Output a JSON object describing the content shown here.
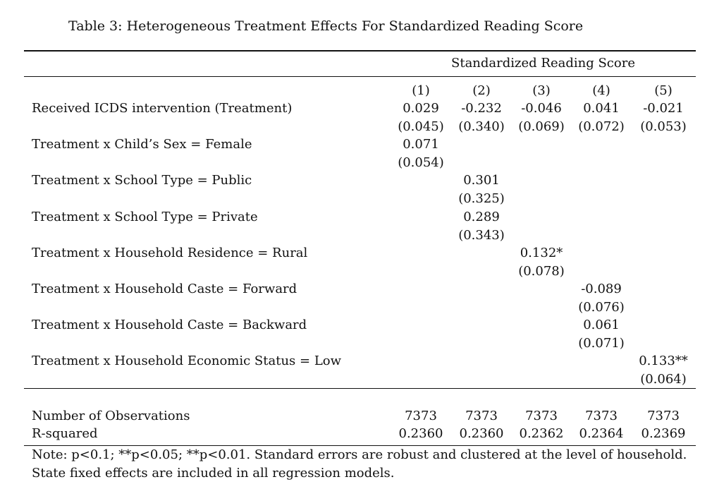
{
  "caption": "Table 3: Heterogeneous Treatment Effects For Standardized Reading Score",
  "header_group": "Standardized Reading Score",
  "columns": [
    "(1)",
    "(2)",
    "(3)",
    "(4)",
    "(5)"
  ],
  "rows": [
    {
      "label": "Received ICDS intervention (Treatment)",
      "coef": [
        "0.029",
        "-0.232",
        "-0.046",
        "0.041",
        "-0.021"
      ],
      "se": [
        "(0.045)",
        "(0.340)",
        "(0.069)",
        "(0.072)",
        "(0.053)"
      ]
    },
    {
      "label": "Treatment x Child’s Sex = Female",
      "coef": [
        "0.071",
        "",
        "",
        "",
        ""
      ],
      "se": [
        "(0.054)",
        "",
        "",
        "",
        ""
      ]
    },
    {
      "label": "Treatment x School Type = Public",
      "coef": [
        "",
        "0.301",
        "",
        "",
        ""
      ],
      "se": [
        "",
        "(0.325)",
        "",
        "",
        ""
      ]
    },
    {
      "label": "Treatment x School Type = Private",
      "coef": [
        "",
        "0.289",
        "",
        "",
        ""
      ],
      "se": [
        "",
        "(0.343)",
        "",
        "",
        ""
      ]
    },
    {
      "label": "Treatment x Household Residence = Rural",
      "coef": [
        "",
        "",
        "0.132*",
        "",
        ""
      ],
      "se": [
        "",
        "",
        "(0.078)",
        "",
        ""
      ]
    },
    {
      "label": "Treatment x Household Caste = Forward",
      "coef": [
        "",
        "",
        "",
        "-0.089",
        ""
      ],
      "se": [
        "",
        "",
        "",
        "(0.076)",
        ""
      ]
    },
    {
      "label": "Treatment x Household Caste = Backward",
      "coef": [
        "",
        "",
        "",
        "0.061",
        ""
      ],
      "se": [
        "",
        "",
        "",
        "(0.071)",
        ""
      ]
    },
    {
      "label": "Treatment x Household Economic Status = Low",
      "coef": [
        "",
        "",
        "",
        "",
        "0.133**"
      ],
      "se": [
        "",
        "",
        "",
        "",
        "(0.064)"
      ]
    }
  ],
  "stats": [
    {
      "label": "Number of Observations",
      "values": [
        "7373",
        "7373",
        "7373",
        "7373",
        "7373"
      ]
    },
    {
      "label": "R-squared",
      "values": [
        "0.2360",
        "0.2360",
        "0.2362",
        "0.2364",
        "0.2369"
      ]
    }
  ],
  "note_line1": "Note: p<0.1; **p<0.05; **p<0.01. Standard errors are robust and clustered at the level of household.",
  "note_line2": "State fixed effects are included in all regression models."
}
